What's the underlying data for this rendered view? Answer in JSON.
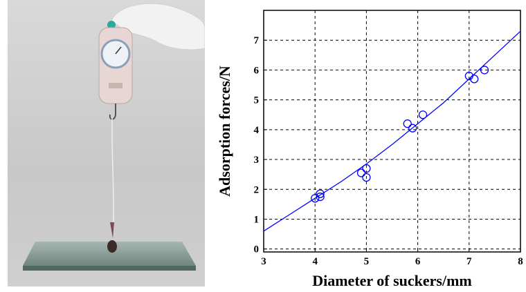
{
  "chart_data": {
    "type": "scatter",
    "xlabel": "Diameter of suckers/mm",
    "ylabel": "Adsorption forces/N",
    "xlim": [
      3,
      8
    ],
    "ylim": [
      -0.1,
      8
    ],
    "xticks": [
      3,
      4,
      5,
      6,
      7,
      8
    ],
    "yticks": [
      0,
      1,
      2,
      3,
      4,
      5,
      6,
      7
    ],
    "grid": true,
    "points": [
      {
        "x": 4.0,
        "y": 1.7
      },
      {
        "x": 4.1,
        "y": 1.85
      },
      {
        "x": 4.1,
        "y": 1.75
      },
      {
        "x": 4.9,
        "y": 2.55
      },
      {
        "x": 5.0,
        "y": 2.7
      },
      {
        "x": 5.0,
        "y": 2.4
      },
      {
        "x": 5.8,
        "y": 4.2
      },
      {
        "x": 5.9,
        "y": 4.05
      },
      {
        "x": 6.1,
        "y": 4.5
      },
      {
        "x": 7.0,
        "y": 5.8
      },
      {
        "x": 7.1,
        "y": 5.7
      },
      {
        "x": 7.3,
        "y": 6.0
      }
    ],
    "fit_curve": {
      "x": [
        3.0,
        3.5,
        4.0,
        4.5,
        5.0,
        5.5,
        6.0,
        6.5,
        7.0,
        7.5,
        8.0
      ],
      "y": [
        0.6,
        1.15,
        1.7,
        2.25,
        2.85,
        3.5,
        4.2,
        4.9,
        5.7,
        6.5,
        7.3
      ]
    },
    "colors": {
      "marker": "#0000ff",
      "curve": "#0000ff",
      "grid": "#000000"
    }
  },
  "photo": {
    "icon": "spring-scale-suction-test-photo"
  }
}
